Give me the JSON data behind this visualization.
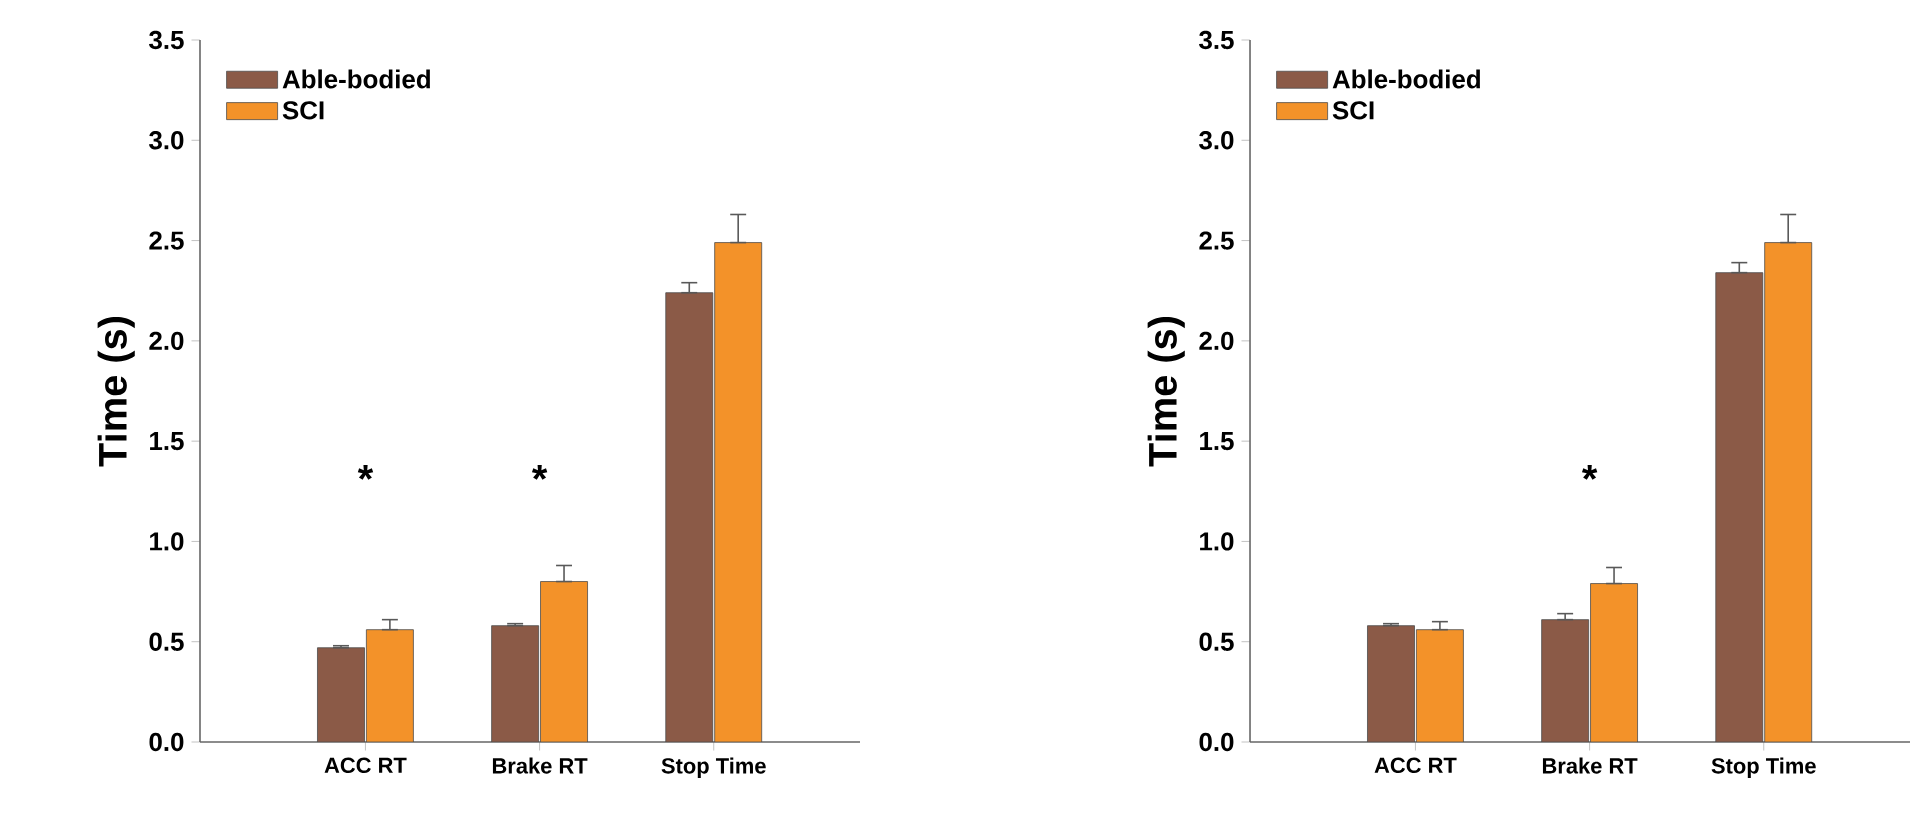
{
  "chart_data": [
    {
      "type": "bar",
      "ylabel": "Time (s)",
      "categories": [
        "ACC RT",
        "Brake RT",
        "Stop Time"
      ],
      "ylim": [
        0,
        3.5
      ],
      "yticks": [
        {
          "value": 0,
          "label": "0.0"
        },
        0.5,
        {
          "value": 1,
          "label": "1.0"
        },
        1.5,
        {
          "value": 2,
          "label": "2.0"
        },
        2.5,
        {
          "value": 3,
          "label": "3.0"
        },
        3.5
      ],
      "legend": "top left",
      "grid": false,
      "series": [
        {
          "name": "Able-bodied",
          "color": "#8b5a47",
          "values": [
            0.47,
            0.58,
            2.24
          ],
          "errors": [
            [
              0.47,
              0.48
            ],
            [
              0.58,
              0.59
            ],
            [
              2.24,
              2.29
            ]
          ]
        },
        {
          "name": "SCI",
          "color": "#f39229",
          "values": [
            0.56,
            0.8,
            2.49
          ],
          "errors": [
            [
              0.56,
              0.61
            ],
            [
              0.8,
              0.88
            ],
            [
              2.49,
              2.63
            ]
          ]
        }
      ],
      "annotations": [
        "*",
        "*"
      ]
    },
    {
      "type": "bar",
      "ylabel": "Time (s)",
      "categories": [
        "ACC RT",
        "Brake RT",
        "Stop Time"
      ],
      "ylim": [
        0,
        3.5
      ],
      "yticks": [
        {
          "value": 0,
          "label": "0.0"
        },
        0.5,
        {
          "value": 1,
          "label": "1.0"
        },
        1.5,
        {
          "value": 2,
          "label": "2.0"
        },
        2.5,
        {
          "value": 3,
          "label": "3.0"
        },
        3.5
      ],
      "legend": "top left",
      "grid": false,
      "series": [
        {
          "name": "Able-bodied",
          "color": "#8b5a47",
          "values": [
            0.58,
            0.61,
            2.34
          ],
          "errors": [
            [
              0.58,
              0.59
            ],
            [
              0.61,
              0.64
            ],
            [
              2.34,
              2.39
            ]
          ]
        },
        {
          "name": "SCI",
          "color": "#f39229",
          "values": [
            0.56,
            0.79,
            2.49
          ],
          "errors": [
            [
              0.56,
              0.6
            ],
            [
              0.79,
              0.87
            ],
            [
              2.49,
              2.63
            ]
          ]
        }
      ],
      "annotations": [
        "*"
      ]
    }
  ]
}
